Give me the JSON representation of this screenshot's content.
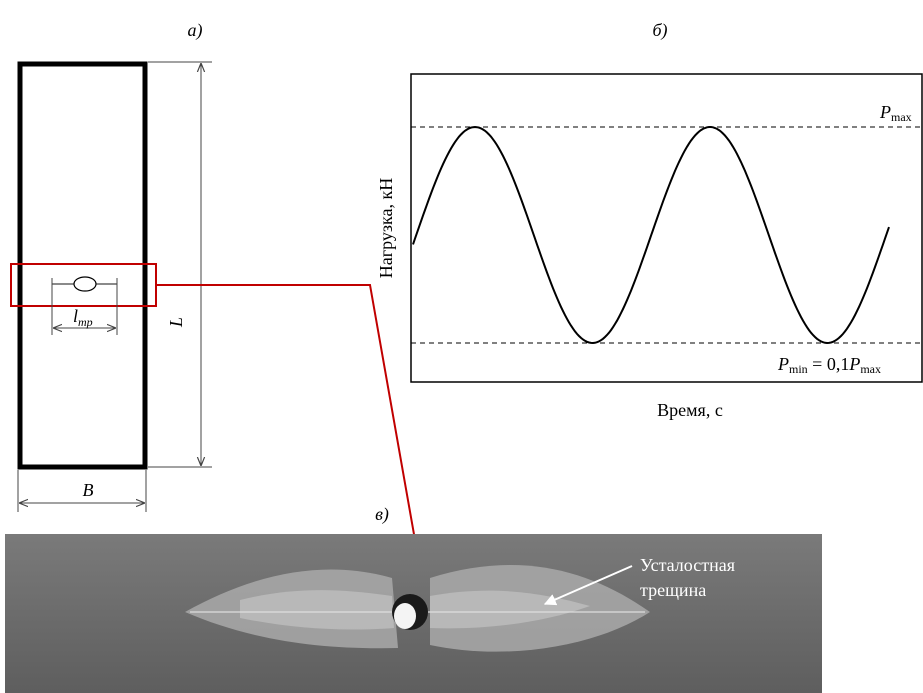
{
  "panel_a": {
    "label": "а)",
    "length_symbol": "l",
    "length_subscript": "тр",
    "height_label": "L",
    "width_label": "B"
  },
  "panel_b": {
    "label": "б)",
    "y_axis_label": "Нагрузка, кН",
    "x_axis_label": "Время, с",
    "pmax": {
      "symbol": "P",
      "subscript": "max"
    },
    "pmin": {
      "symbol": "P",
      "subscript": "min",
      "equals": " = 0,1",
      "symbol2": "P",
      "subscript2": "max"
    }
  },
  "panel_c": {
    "label": "в)",
    "annotation": [
      "Усталостная",
      "трещина"
    ]
  }
}
